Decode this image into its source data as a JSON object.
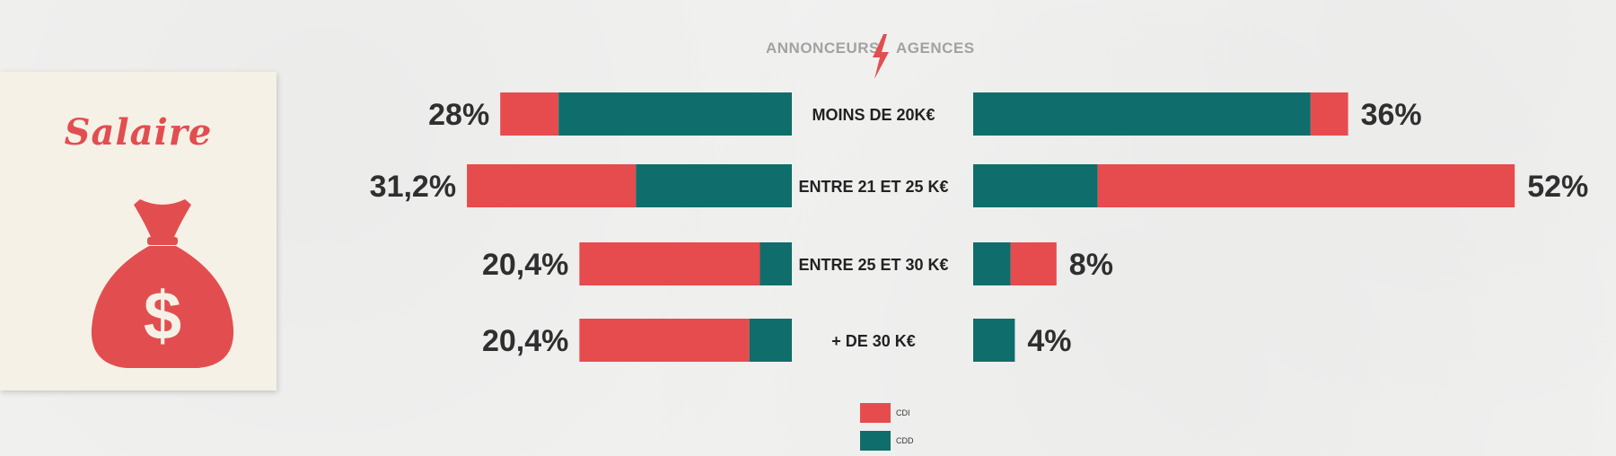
{
  "card": {
    "title": "Salaire",
    "icon": "money-bag-icon"
  },
  "header": {
    "left": "ANNONCEURS",
    "right": "AGENCES",
    "icon": "lightning-bolt-icon"
  },
  "colors": {
    "cdi": "#e64c4e",
    "cdd": "#0f6e6c",
    "card_bg": "#f6f1e6"
  },
  "chart_data": {
    "type": "bar",
    "categories": [
      "MOINS DE 20K€",
      "ENTRE 21 ET 25 K€",
      "ENTRE 25 ET 30 K€",
      "+ DE 30 K€"
    ],
    "groups": [
      {
        "name": "ANNONCEURS",
        "totals": [
          28,
          31.2,
          20.4,
          20.4
        ],
        "labels": [
          "28%",
          "31,2%",
          "20,4%",
          "20,4%"
        ],
        "cdi_share": [
          0.2,
          0.52,
          0.85,
          0.8
        ]
      },
      {
        "name": "AGENCES",
        "totals": [
          36,
          52,
          8,
          4
        ],
        "labels": [
          "36%",
          "52%",
          "8%",
          "4%"
        ],
        "cdi_share": [
          0.1,
          0.77,
          0.55,
          0
        ]
      }
    ],
    "legend": [
      "CDI",
      "CDD"
    ]
  }
}
